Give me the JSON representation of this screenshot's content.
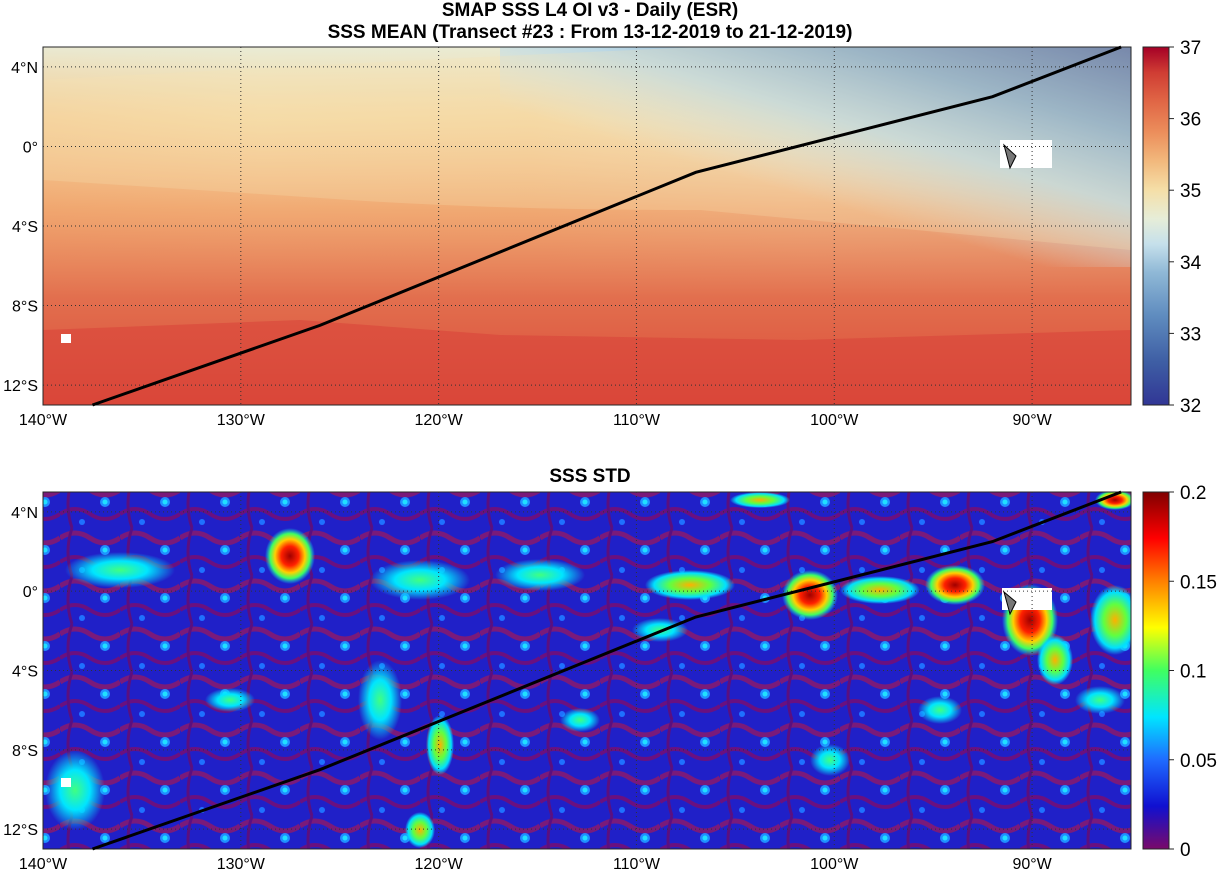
{
  "titles": {
    "line1": "SMAP SSS L4 OI v3 - Daily (ESR)",
    "line2": "SSS MEAN (Transect #23 : From 13-12-2019 to 21-12-2019)",
    "std_title": "SSS STD"
  },
  "axes": {
    "lon_labels": [
      "140°W",
      "130°W",
      "120°W",
      "110°W",
      "100°W",
      "90°W"
    ],
    "lon_values": [
      -140,
      -130,
      -120,
      -110,
      -100,
      -90
    ],
    "lat_labels": [
      "4°N",
      "0°",
      "4°S",
      "8°S",
      "12°S"
    ],
    "lat_values": [
      4,
      0,
      -4,
      -8,
      -12
    ],
    "lon_range": [
      -140,
      -85
    ],
    "lat_range": [
      -13,
      5
    ]
  },
  "colorbars": {
    "mean": {
      "labels": [
        "37",
        "36",
        "35",
        "34",
        "33",
        "32"
      ],
      "range": [
        32,
        37
      ]
    },
    "std": {
      "labels": [
        "0.2",
        "0.15",
        "0.1",
        "0.05",
        "0"
      ],
      "range": [
        0,
        0.2
      ]
    }
  },
  "transect": {
    "lon": [
      -137.5,
      -126,
      -107,
      -92,
      -85.5
    ],
    "lat": [
      -13,
      -9,
      -1.3,
      2.5,
      5
    ]
  },
  "colors": {
    "transect_line": "#000000",
    "mean_colormap": [
      "#313695",
      "#3e5ea4",
      "#5f8cbf",
      "#8fb8d6",
      "#c6e0eb",
      "#e6edd8",
      "#f5dfa8",
      "#f2b97d",
      "#ec8f5c",
      "#e06545",
      "#cf3c33",
      "#a50026"
    ],
    "std_colormap": [
      "#7a0a6a",
      "#1010d0",
      "#1f6bff",
      "#00e5ff",
      "#40ff60",
      "#ffff00",
      "#ff8000",
      "#ff0000",
      "#800000"
    ]
  }
}
